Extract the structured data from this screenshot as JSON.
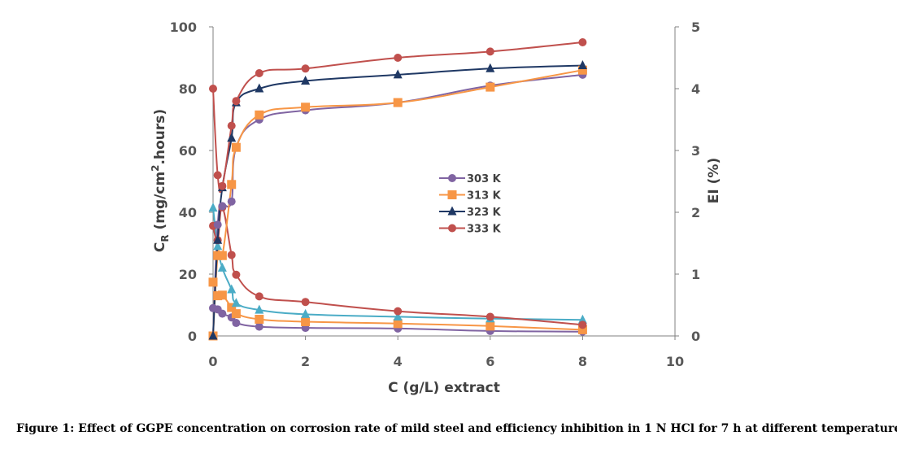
{
  "caption": "Figure 1: Effect of GGPE concentration on corrosion rate of mild steel and efficiency inhibition in 1 N HCl for 7 h at different temperature",
  "chart_data": {
    "type": "scatter",
    "xlabel": "C (g/L) extract",
    "ylabel_left": "C_R (mg/cm².hours)",
    "ylabel_left_main": "C",
    "ylabel_left_sub": "R",
    "ylabel_left_rest": " (mg/cm",
    "ylabel_left_sup": "2",
    "ylabel_left_end": ".hours)",
    "ylabel_right": "EI (%)",
    "xlim": [
      0,
      10
    ],
    "ylim_left": [
      0,
      100
    ],
    "ylim_right": [
      0,
      5
    ],
    "x_ticks": [
      "0",
      "2",
      "4",
      "6",
      "8",
      "10"
    ],
    "y_left_ticks": [
      "0",
      "20",
      "40",
      "60",
      "80",
      "100"
    ],
    "y_right_ticks": [
      "0",
      "1",
      "2",
      "3",
      "4",
      "5"
    ],
    "legend_position": "center",
    "grid": false,
    "series": [
      {
        "name": "303 K",
        "color": "#8064A2",
        "marker": "circle",
        "ei": {
          "x": [
            0,
            0.1,
            0.2,
            0.4,
            0.5,
            1,
            2,
            4,
            6,
            8
          ],
          "y": [
            0,
            36,
            42,
            43.5,
            61,
            70,
            73,
            75.5,
            81,
            84.5
          ]
        }
      },
      {
        "name": "313 K",
        "color": "#F79646",
        "marker": "square",
        "ei": {
          "x": [
            0,
            0.1,
            0.2,
            0.4,
            0.5,
            1,
            2,
            4,
            6,
            8
          ],
          "y": [
            0,
            26,
            26,
            49,
            61,
            71.5,
            74,
            75.5,
            80.5,
            86
          ]
        }
      },
      {
        "name": "323 K",
        "color": "#1F3864",
        "marker": "triangle",
        "ei": {
          "x": [
            0,
            0.1,
            0.2,
            0.4,
            0.5,
            1,
            2,
            4,
            6,
            8
          ],
          "y": [
            0,
            31,
            48,
            64,
            75.5,
            80,
            82.5,
            84.5,
            86.5,
            87.5
          ]
        }
      },
      {
        "name": "333 K",
        "color": "#C0504D",
        "marker": "circle",
        "ei": {
          "x": [
            0,
            0.1,
            0.2,
            0.4,
            0.5,
            1,
            2,
            4,
            6,
            8
          ],
          "y": [
            80,
            52,
            48.5,
            68,
            76,
            85,
            86.5,
            90,
            92,
            95
          ]
        }
      }
    ],
    "cr_series": [
      {
        "temperature": "303 K",
        "color": "#8064A2",
        "marker": "circle",
        "x": [
          0,
          0.1,
          0.2,
          0.4,
          0.5,
          1,
          2,
          4,
          6,
          8
        ],
        "y": [
          0.45,
          0.43,
          0.36,
          0.3,
          0.21,
          0.15,
          0.13,
          0.12,
          0.08,
          0.07
        ]
      },
      {
        "temperature": "313 K",
        "color": "#F79646",
        "marker": "square",
        "x": [
          0,
          0.1,
          0.2,
          0.4,
          0.5,
          1,
          2,
          4,
          6,
          8
        ],
        "y": [
          0.87,
          0.65,
          0.66,
          0.46,
          0.36,
          0.27,
          0.23,
          0.2,
          0.16,
          0.1
        ]
      },
      {
        "temperature": "323 K",
        "color": "#4BACC6",
        "marker": "triangle",
        "x": [
          0,
          0.1,
          0.2,
          0.4,
          0.5,
          1,
          2,
          4,
          6,
          8
        ],
        "y": [
          2.07,
          1.45,
          1.1,
          0.75,
          0.53,
          0.42,
          0.35,
          0.31,
          0.28,
          0.26
        ]
      },
      {
        "temperature": "333 K",
        "color": "#C0504D",
        "marker": "circle",
        "x": [
          0,
          0.1,
          0.2,
          0.4,
          0.5,
          1,
          2,
          4,
          6,
          8
        ],
        "y": [
          1.78,
          1.55,
          2.08,
          1.31,
          0.99,
          0.64,
          0.55,
          0.4,
          0.31,
          0.18
        ]
      }
    ]
  }
}
